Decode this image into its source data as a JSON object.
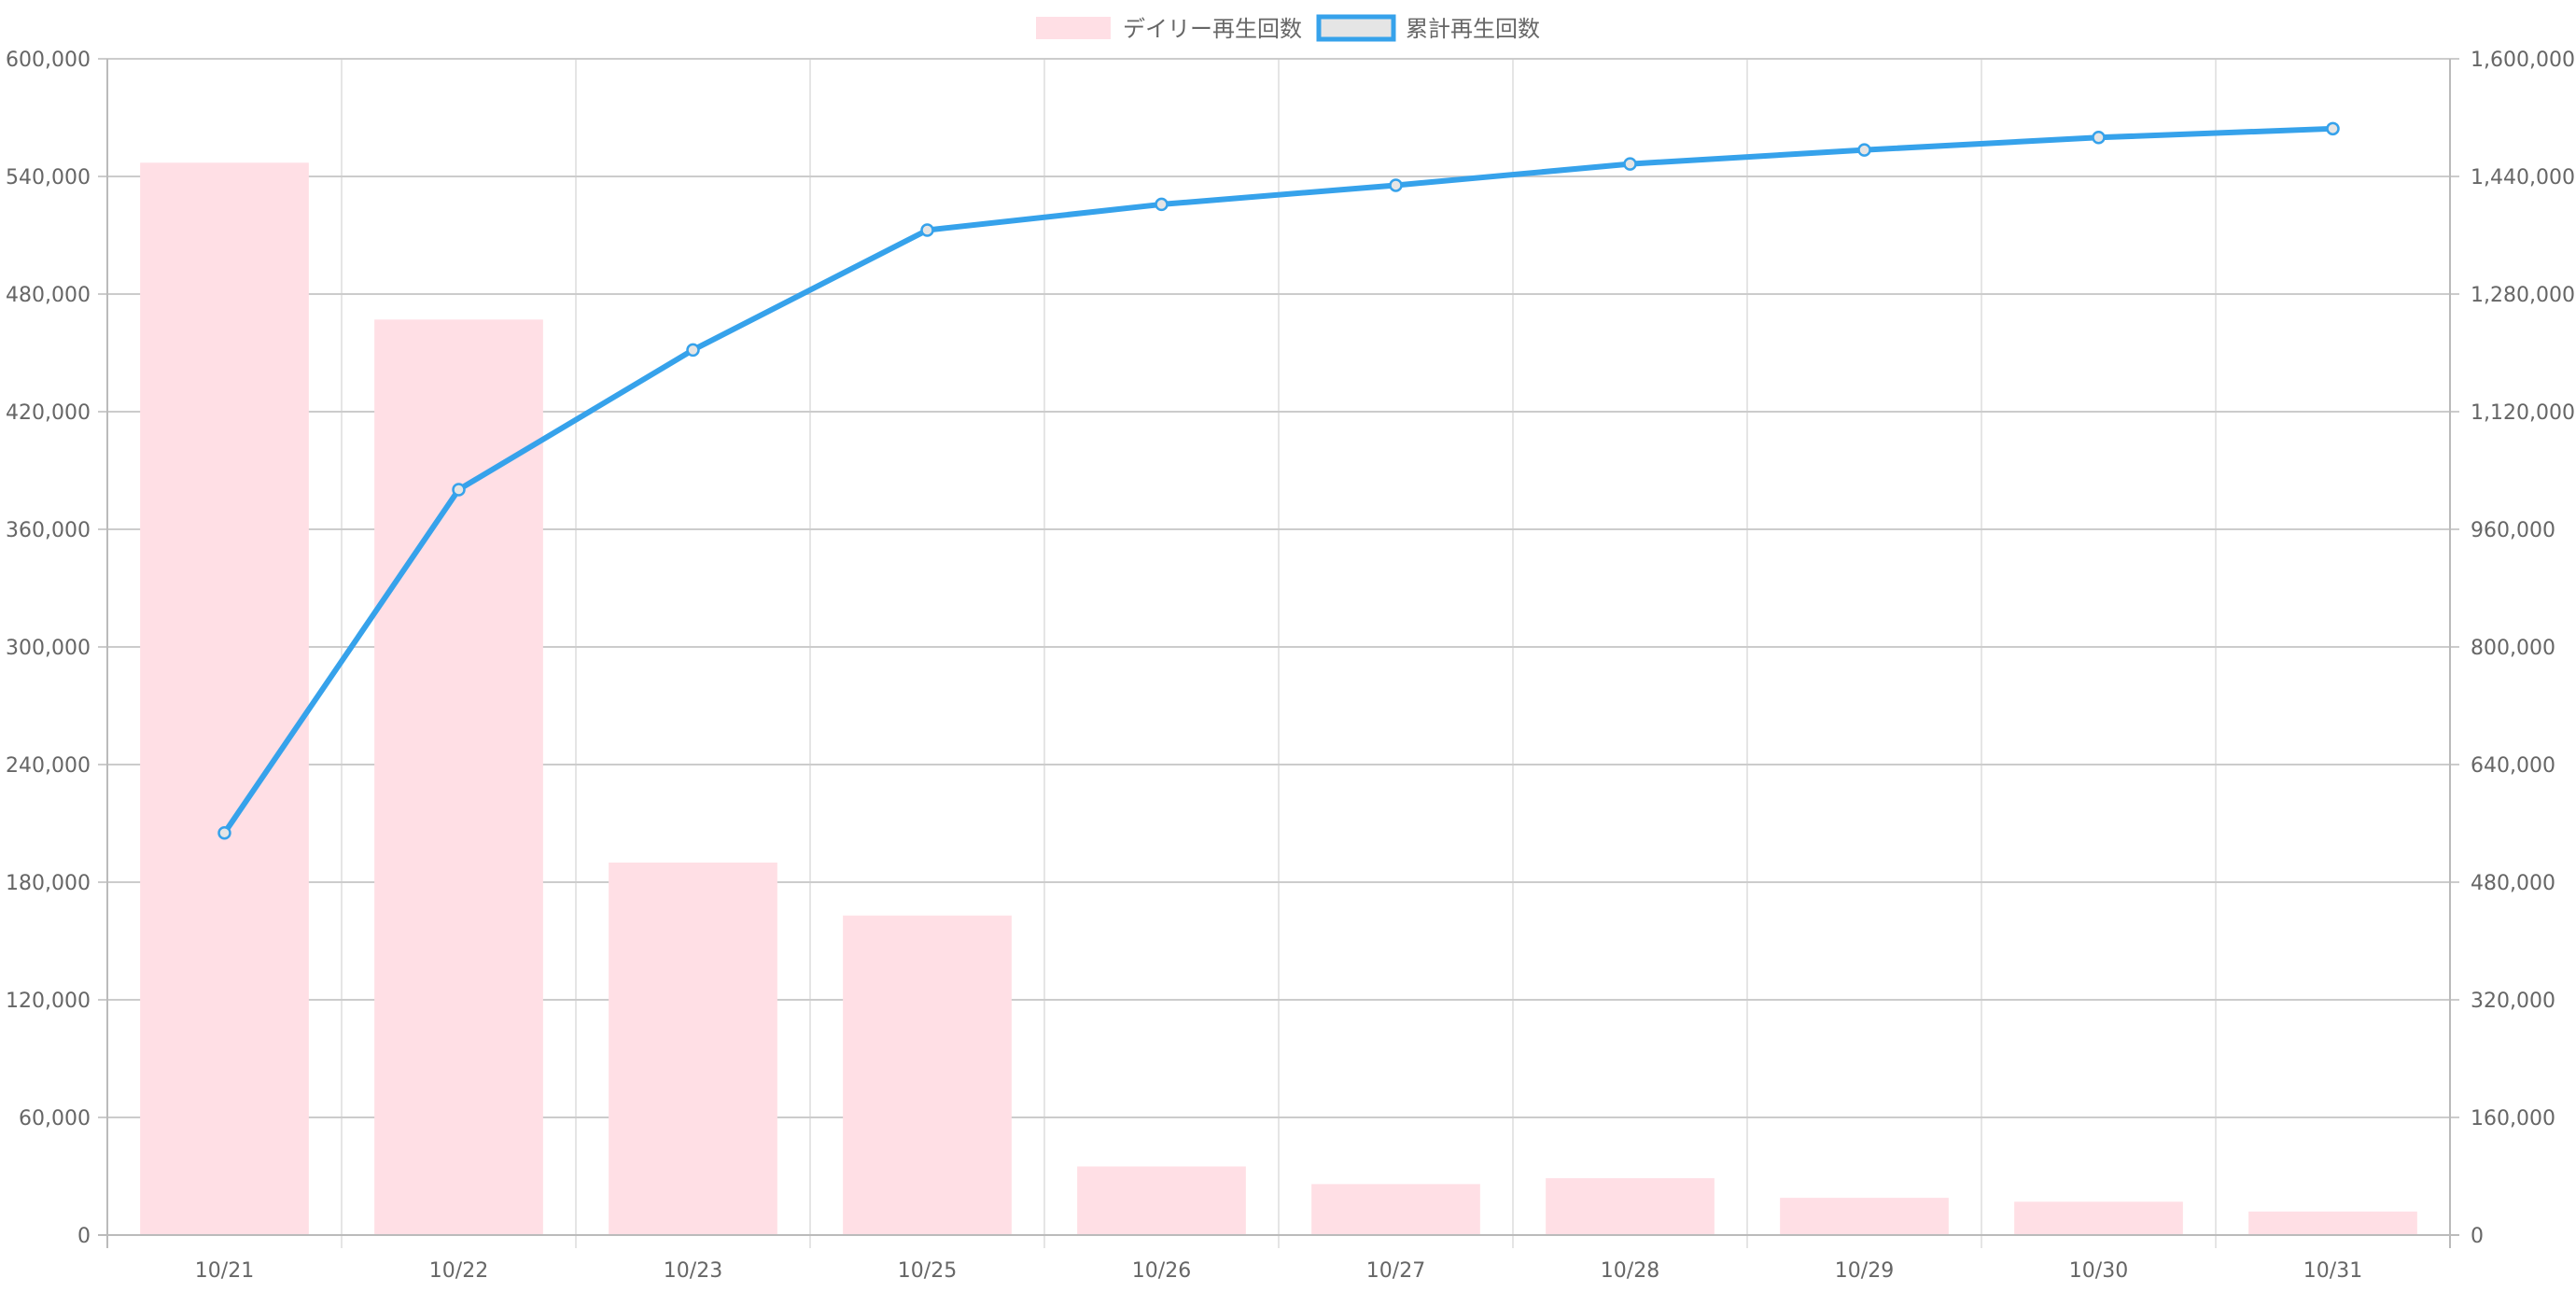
{
  "chart_data": {
    "type": "bar",
    "categories": [
      "10/21",
      "10/22",
      "10/23",
      "10/25",
      "10/26",
      "10/27",
      "10/28",
      "10/29",
      "10/30",
      "10/31"
    ],
    "series": [
      {
        "name": "デイリー再生回数",
        "type": "bar",
        "axis": "left",
        "color": "#FFDFE5",
        "values": [
          547000,
          467000,
          190000,
          163000,
          35000,
          26000,
          29000,
          19000,
          17000,
          12000
        ]
      },
      {
        "name": "累計再生回数",
        "type": "line",
        "axis": "right",
        "color": "#36A2EB",
        "point_fill": "#E5E5E5",
        "values": [
          547000,
          1014000,
          1204000,
          1367000,
          1402000,
          1428000,
          1457000,
          1476000,
          1493000,
          1505000
        ]
      }
    ],
    "y_left": {
      "ylim": [
        0,
        600000
      ],
      "ticks": [
        "0",
        "60,000",
        "120,000",
        "180,000",
        "240,000",
        "300,000",
        "360,000",
        "420,000",
        "480,000",
        "540,000",
        "600,000"
      ]
    },
    "y_right": {
      "ylim": [
        0,
        1600000
      ],
      "ticks": [
        "0",
        "160,000",
        "320,000",
        "480,000",
        "640,000",
        "800,000",
        "960,000",
        "1,120,000",
        "1,280,000",
        "1,440,000",
        "1,600,000"
      ]
    },
    "title": "",
    "xlabel": "",
    "ylabel": "",
    "grid": true,
    "legend_position": "top-center",
    "colors": {
      "grid": "#E5E5E5",
      "grid_horizontal": "#CCCCCC",
      "axis": "#BBBBBB",
      "text": "#666666"
    }
  }
}
